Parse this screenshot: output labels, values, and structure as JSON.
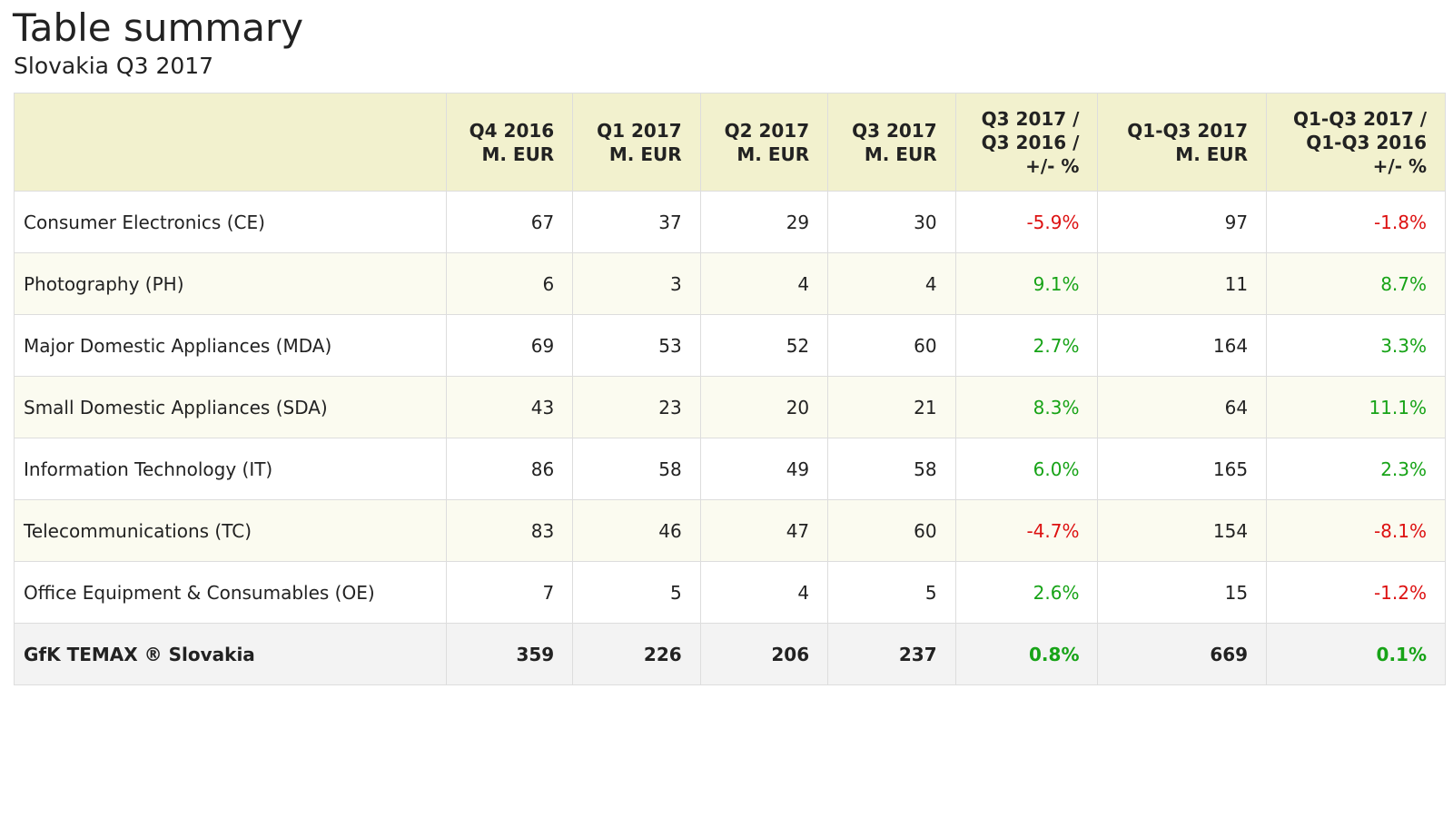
{
  "title": "Table summary",
  "subtitle": "Slovakia Q3 2017",
  "colors": {
    "header_bg": "#f2f1ce",
    "alt_row_bg": "#fbfbf0",
    "total_row_bg": "#f3f3f3",
    "positive": "#17a317",
    "negative": "#dd1111"
  },
  "table": {
    "headers": [
      "",
      "Q4 2016\nM. EUR",
      "Q1 2017\nM. EUR",
      "Q2 2017\nM. EUR",
      "Q3 2017\nM. EUR",
      "Q3 2017 /\nQ3 2016 /\n+/- %",
      "Q1-Q3 2017\nM. EUR",
      "Q1-Q3 2017 /\nQ1-Q3 2016\n+/- %"
    ],
    "rows": [
      {
        "label": "Consumer Electronics (CE)",
        "q4_2016": "67",
        "q1_2017": "37",
        "q2_2017": "29",
        "q3_2017": "30",
        "q3_change": "-5.9%",
        "q1q3_2017": "97",
        "q1q3_change": "-1.8%"
      },
      {
        "label": "Photography (PH)",
        "q4_2016": "6",
        "q1_2017": "3",
        "q2_2017": "4",
        "q3_2017": "4",
        "q3_change": "9.1%",
        "q1q3_2017": "11",
        "q1q3_change": "8.7%"
      },
      {
        "label": "Major Domestic Appliances (MDA)",
        "q4_2016": "69",
        "q1_2017": "53",
        "q2_2017": "52",
        "q3_2017": "60",
        "q3_change": "2.7%",
        "q1q3_2017": "164",
        "q1q3_change": "3.3%"
      },
      {
        "label": "Small Domestic Appliances (SDA)",
        "q4_2016": "43",
        "q1_2017": "23",
        "q2_2017": "20",
        "q3_2017": "21",
        "q3_change": "8.3%",
        "q1q3_2017": "64",
        "q1q3_change": "11.1%"
      },
      {
        "label": "Information Technology (IT)",
        "q4_2016": "86",
        "q1_2017": "58",
        "q2_2017": "49",
        "q3_2017": "58",
        "q3_change": "6.0%",
        "q1q3_2017": "165",
        "q1q3_change": "2.3%"
      },
      {
        "label": "Telecommunications (TC)",
        "q4_2016": "83",
        "q1_2017": "46",
        "q2_2017": "47",
        "q3_2017": "60",
        "q3_change": "-4.7%",
        "q1q3_2017": "154",
        "q1q3_change": "-8.1%"
      },
      {
        "label": "Office Equipment & Consumables (OE)",
        "q4_2016": "7",
        "q1_2017": "5",
        "q2_2017": "4",
        "q3_2017": "5",
        "q3_change": "2.6%",
        "q1q3_2017": "15",
        "q1q3_change": "-1.2%"
      }
    ],
    "total": {
      "label": "GfK TEMAX ® Slovakia",
      "q4_2016": "359",
      "q1_2017": "226",
      "q2_2017": "206",
      "q3_2017": "237",
      "q3_change": "0.8%",
      "q1q3_2017": "669",
      "q1q3_change": "0.1%"
    }
  }
}
